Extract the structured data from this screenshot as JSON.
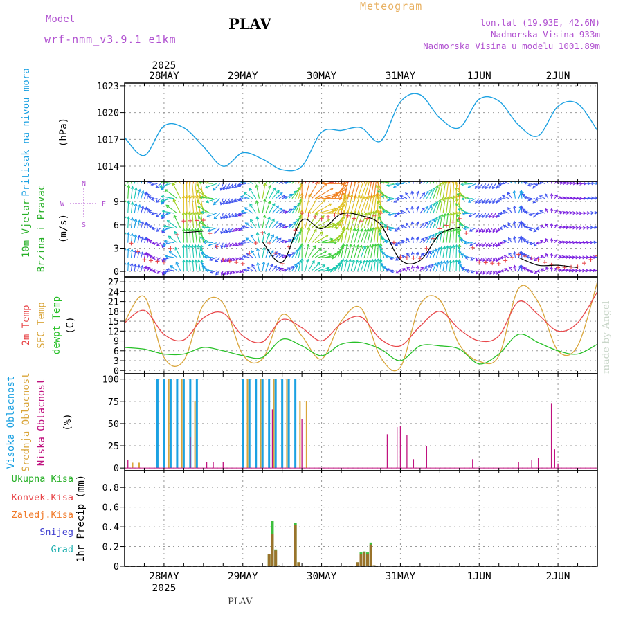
{
  "header": {
    "model_label": "Model",
    "model_name": "wrf-nmm_v3.9.1  e1km",
    "station": "PLAV",
    "product": "Meteogram",
    "lonlat": "lon,lat (19.93E, 42.6N)",
    "elevation": "Nadmorska Visina 933m",
    "model_elevation": "Nadmorska Visina u modelu 1001.89m",
    "year": "2025",
    "footer_station": "PLAV",
    "credit": "made by Angel"
  },
  "panel_labels": {
    "pressure_title": "Pritisak na nivou mora",
    "pressure_unit": "(hPa)",
    "wind_title_1": "10m Vjetar",
    "wind_title_2": "Brzina i Pravac",
    "wind_unit": "(m/s)",
    "compass_n": "N",
    "compass_s": "S",
    "compass_e": "E",
    "compass_w": "W",
    "temp_2m": "2m Temp",
    "temp_sfc": "SFC Temp",
    "temp_dewpt": "dewpt Temp",
    "temp_unit": "(C)",
    "cloud_high": "Visoka Oblacnost",
    "cloud_mid": "Srednja Oblacnost",
    "cloud_low": "Niska Oblacnost",
    "cloud_unit": "(%)",
    "precip_title": "1hr Precip (mm)",
    "legend_total": "Ukupna Kisa",
    "legend_conv": "Konvek.Kisa",
    "legend_frz": "Zaledj.Kisa",
    "legend_snow": "Snijeg",
    "legend_graupel": "Grad"
  },
  "colors": {
    "pressure": "#1ba1e2",
    "t2m": "#e8474a",
    "tsfc": "#d9a53a",
    "dewpt": "#27c027",
    "high_cloud": "#1ba1e2",
    "mid_cloud": "#d9a53a",
    "low_cloud": "#c0127f",
    "precip_total": "#3cbf3c",
    "precip_conv": "#b85a26",
    "gust": "#000000",
    "wind_speed_markers": "#e8474a",
    "label_pressure": "#1ba1e2",
    "label_wind": "#27b027",
    "label_legend_total": "#27b027",
    "label_legend_conv": "#e8474a",
    "label_legend_frz": "#f07a2a",
    "label_legend_snow": "#4040d0",
    "label_legend_graupel": "#20b0b0"
  },
  "chart_data": {
    "type": "line",
    "time_axis": {
      "start": "2025-05-27 12:00",
      "end": "2025-06-02 12:00",
      "day_ticks": [
        "28MAY",
        "29MAY",
        "30MAY",
        "31MAY",
        "1JUN",
        "2JUN"
      ]
    },
    "pressure": {
      "ylabel": "(hPa)",
      "yticks": [
        1014,
        1017,
        1020,
        1023
      ],
      "ylim": [
        1012.3,
        1023.3
      ],
      "times": [
        "2025-05-27 12:00",
        "2025-05-27 18:00",
        "2025-05-28 00:00",
        "2025-05-28 06:00",
        "2025-05-28 12:00",
        "2025-05-28 18:00",
        "2025-05-29 00:00",
        "2025-05-29 06:00",
        "2025-05-29 12:00",
        "2025-05-29 18:00",
        "2025-05-30 00:00",
        "2025-05-30 06:00",
        "2025-05-30 12:00",
        "2025-05-30 18:00",
        "2025-05-31 00:00",
        "2025-05-31 06:00",
        "2025-05-31 12:00",
        "2025-05-31 18:00",
        "2025-06-01 00:00",
        "2025-06-01 06:00",
        "2025-06-01 12:00",
        "2025-06-01 18:00",
        "2025-06-02 00:00",
        "2025-06-02 06:00",
        "2025-06-02 12:00"
      ],
      "values": [
        1017.2,
        1015.2,
        1018.5,
        1018.3,
        1016.2,
        1014.0,
        1015.5,
        1014.8,
        1013.6,
        1014.0,
        1017.8,
        1018.0,
        1018.3,
        1016.8,
        1021.2,
        1022.0,
        1019.4,
        1018.3,
        1021.5,
        1021.3,
        1018.6,
        1017.4,
        1020.7,
        1021.0,
        1018.0
      ]
    },
    "wind": {
      "ylabel": "(m/s)",
      "yticks": [
        0,
        3,
        6,
        9
      ],
      "ylim": [
        -0.7,
        11.6
      ],
      "speed_times": [
        "2025-05-27 12:00",
        "2025-05-27 18:00",
        "2025-05-28 00:00",
        "2025-05-28 06:00",
        "2025-05-28 12:00",
        "2025-05-28 18:00",
        "2025-05-29 00:00",
        "2025-05-29 06:00",
        "2025-05-29 12:00",
        "2025-05-29 18:00",
        "2025-05-30 00:00",
        "2025-05-30 06:00",
        "2025-05-30 12:00",
        "2025-05-30 18:00",
        "2025-05-31 00:00",
        "2025-05-31 06:00",
        "2025-05-31 12:00",
        "2025-05-31 18:00",
        "2025-06-01 00:00",
        "2025-06-01 06:00",
        "2025-06-01 12:00",
        "2025-06-01 18:00",
        "2025-06-02 00:00",
        "2025-06-02 06:00",
        "2025-06-02 12:00"
      ],
      "speed": [
        4.7,
        1.5,
        1.2,
        6.5,
        6.6,
        1.5,
        1.0,
        5.0,
        1.0,
        7.5,
        6.8,
        7.5,
        6.5,
        7.5,
        1.8,
        1.7,
        5.5,
        6.8,
        1.2,
        1.0,
        2.2,
        1.5,
        0.5,
        0.6,
        2.0
      ],
      "gust": [
        null,
        null,
        null,
        5.0,
        5.2,
        null,
        null,
        3.8,
        1.2,
        6.6,
        5.5,
        7.4,
        7.2,
        6.0,
        1.5,
        1.4,
        4.8,
        5.7,
        null,
        null,
        1.8,
        0.8,
        0.8,
        0.5,
        null
      ],
      "direction_from_deg": [
        180,
        200,
        20,
        180,
        170,
        20,
        60,
        190,
        250,
        180,
        270,
        190,
        200,
        180,
        60,
        220,
        190,
        180,
        40,
        30,
        200,
        50,
        250,
        270,
        260
      ],
      "barb_rows_speed_ms": [
        0.1,
        1.8,
        3.7,
        5.6,
        7.5,
        9.4,
        11.3
      ]
    },
    "temperature": {
      "ylabel": "(C)",
      "yticks": [
        0,
        3,
        6,
        9,
        12,
        15,
        18,
        21,
        24,
        27
      ],
      "ylim": [
        -1,
        28.5
      ],
      "times": [
        "2025-05-27 12:00",
        "2025-05-27 18:00",
        "2025-05-28 00:00",
        "2025-05-28 06:00",
        "2025-05-28 12:00",
        "2025-05-28 18:00",
        "2025-05-29 00:00",
        "2025-05-29 06:00",
        "2025-05-29 12:00",
        "2025-05-29 18:00",
        "2025-05-30 00:00",
        "2025-05-30 06:00",
        "2025-05-30 12:00",
        "2025-05-30 18:00",
        "2025-05-31 00:00",
        "2025-05-31 06:00",
        "2025-05-31 12:00",
        "2025-05-31 18:00",
        "2025-06-01 00:00",
        "2025-06-01 06:00",
        "2025-06-01 12:00",
        "2025-06-01 18:00",
        "2025-06-02 00:00",
        "2025-06-02 06:00",
        "2025-06-02 12:00"
      ],
      "series": [
        {
          "name": "2m Temp",
          "values": [
            14.5,
            18.3,
            11.0,
            9.3,
            16.0,
            17.5,
            10.5,
            8.7,
            15.5,
            13.0,
            9.0,
            14.3,
            16.3,
            9.5,
            7.5,
            13.5,
            18.0,
            12.5,
            9.0,
            10.5,
            21.0,
            17.0,
            12.0,
            14.5,
            24.0
          ]
        },
        {
          "name": "SFC Temp",
          "values": [
            14.8,
            22.5,
            4.0,
            3.0,
            20.0,
            20.5,
            4.8,
            3.5,
            17.0,
            10.5,
            3.5,
            15.0,
            19.0,
            4.0,
            1.0,
            20.0,
            21.5,
            7.8,
            2.8,
            4.5,
            25.0,
            20.8,
            6.0,
            7.5,
            27.0
          ]
        },
        {
          "name": "dewpt Temp",
          "values": [
            7.0,
            6.5,
            5.0,
            5.0,
            7.0,
            6.0,
            4.5,
            4.0,
            9.5,
            7.5,
            4.5,
            8.0,
            8.5,
            6.5,
            3.0,
            7.5,
            7.5,
            6.5,
            2.0,
            5.0,
            11.0,
            8.5,
            6.0,
            5.0,
            8.0
          ]
        }
      ]
    },
    "clouds": {
      "ylabel": "(%)",
      "yticks": [
        0,
        25,
        50,
        75,
        100
      ],
      "ylim": [
        -3,
        106
      ],
      "series": [
        {
          "name": "Visoka Oblacnost",
          "times": [
            "2025-05-27 22:00",
            "2025-05-28 00:00",
            "2025-05-28 02:00",
            "2025-05-28 04:00",
            "2025-05-28 06:00",
            "2025-05-28 08:00",
            "2025-05-28 10:00",
            "2025-05-29 00:00",
            "2025-05-29 02:00",
            "2025-05-29 04:00",
            "2025-05-29 06:00",
            "2025-05-29 08:00",
            "2025-05-29 10:00",
            "2025-05-29 12:00",
            "2025-05-29 14:00",
            "2025-05-29 16:00"
          ],
          "values": [
            100,
            100,
            100,
            100,
            100,
            100,
            100,
            100,
            100,
            100,
            100,
            100,
            100,
            100,
            100,
            100
          ]
        },
        {
          "name": "Srednja Oblacnost",
          "times": [
            "2025-05-27 14:00",
            "2025-05-27 16:00",
            "2025-05-28 01:00",
            "2025-05-28 05:00",
            "2025-05-28 09:00",
            "2025-05-29 01:00",
            "2025-05-29 05:00",
            "2025-05-29 09:00",
            "2025-05-29 13:00",
            "2025-05-29 17:00",
            "2025-05-29 19:00"
          ],
          "values": [
            6,
            6,
            100,
            100,
            75,
            100,
            100,
            100,
            100,
            75,
            75
          ]
        },
        {
          "name": "Niska Oblacnost",
          "times": [
            "2025-05-27 13:00",
            "2025-05-28 08:00",
            "2025-05-28 13:00",
            "2025-05-28 15:00",
            "2025-05-28 18:00",
            "2025-05-29 09:00",
            "2025-05-29 18:00",
            "2025-05-30 20:00",
            "2025-05-30 23:00",
            "2025-05-31 00:00",
            "2025-05-31 02:00",
            "2025-05-31 04:00",
            "2025-05-31 08:00",
            "2025-05-31 22:00",
            "2025-06-01 12:00",
            "2025-06-01 16:00",
            "2025-06-01 18:00",
            "2025-06-01 22:00",
            "2025-06-01 23:00",
            "2025-06-02 00:00"
          ],
          "values": [
            9,
            35,
            7,
            7,
            7,
            66,
            55,
            38,
            46,
            47,
            37,
            10,
            25,
            10,
            7,
            9,
            11,
            73,
            21,
            5
          ]
        }
      ]
    },
    "precip": {
      "ylabel": "1hr Precip (mm)",
      "yticks": [
        0,
        0.2,
        0.4,
        0.6,
        0.8
      ],
      "ylim": [
        0,
        0.97
      ],
      "times": [
        "2025-05-29 08:00",
        "2025-05-29 09:00",
        "2025-05-29 10:00",
        "2025-05-29 11:00",
        "2025-05-29 16:00",
        "2025-05-29 17:00",
        "2025-05-30 11:00",
        "2025-05-30 12:00",
        "2025-05-30 13:00",
        "2025-05-30 14:00",
        "2025-05-30 15:00",
        "2025-05-30 16:00"
      ],
      "series": [
        {
          "name": "Ukupna Kisa",
          "values": [
            0.12,
            0.46,
            0.17,
            0.01,
            0.44,
            0.04,
            0.04,
            0.14,
            0.15,
            0.14,
            0.24,
            0.01
          ]
        },
        {
          "name": "Konvek.Kisa",
          "values": [
            0.12,
            0.33,
            0.16,
            0.01,
            0.42,
            0.04,
            0.04,
            0.12,
            0.14,
            0.12,
            0.22,
            0.01
          ]
        },
        {
          "name": "Zaledj.Kisa",
          "values": [
            0,
            0,
            0,
            0,
            0,
            0,
            0,
            0,
            0,
            0,
            0,
            0
          ]
        },
        {
          "name": "Snijeg",
          "values": [
            0,
            0,
            0,
            0,
            0,
            0,
            0,
            0,
            0,
            0,
            0,
            0
          ]
        },
        {
          "name": "Grad",
          "values": [
            0,
            0,
            0,
            0,
            0,
            0,
            0,
            0,
            0,
            0,
            0,
            0
          ]
        }
      ]
    }
  }
}
